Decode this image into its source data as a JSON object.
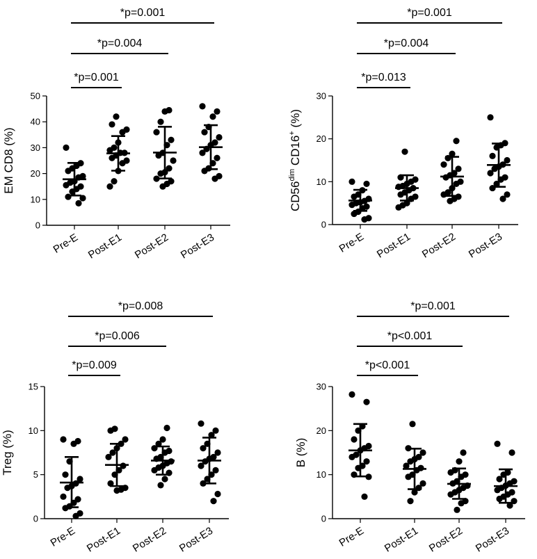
{
  "chart_data": [
    {
      "type": "scatter",
      "ylabel_parts": [
        "EM  CD8 (%)"
      ],
      "categories": [
        "Pre-E",
        "Post-E1",
        "Post-E2",
        "Post-E3"
      ],
      "ylim": [
        0,
        50
      ],
      "yticks": [
        0,
        10,
        20,
        30,
        40,
        50
      ],
      "tick_labels": [
        "0",
        "10",
        "20",
        "30",
        "40",
        "50"
      ],
      "significance": [
        {
          "label": "*p=0.001",
          "from": 0,
          "to": 1
        },
        {
          "label": "*p=0.004",
          "from": 0,
          "to": 2
        },
        {
          "label": "*p=0.001",
          "from": 0,
          "to": 3
        }
      ],
      "summary": [
        {
          "mean": 17.8,
          "low": 11.5,
          "high": 24.1
        },
        {
          "mean": 27.8,
          "low": 21.1,
          "high": 34.5
        },
        {
          "mean": 28.1,
          "low": 18.1,
          "high": 38.1
        },
        {
          "mean": 30.2,
          "low": 21.7,
          "high": 38.7
        }
      ],
      "points": [
        [
          30,
          24,
          23,
          22,
          21,
          19,
          18.5,
          17,
          16.5,
          15.5,
          15,
          14,
          13,
          11,
          10.5,
          8.5
        ],
        [
          42,
          39,
          37,
          36,
          32,
          30,
          29,
          28,
          28,
          27,
          26,
          25,
          24,
          21,
          17,
          15
        ],
        [
          44.5,
          44,
          40,
          36,
          33,
          31,
          28,
          27,
          25,
          22,
          20.5,
          20,
          18,
          17,
          16,
          15
        ],
        [
          46,
          44,
          42,
          38,
          36,
          34,
          32,
          31,
          29.5,
          28,
          26,
          24,
          22,
          21,
          19,
          18
        ]
      ]
    },
    {
      "type": "scatter",
      "ylabel_parts": [
        "CD56",
        "dim",
        " CD16",
        "+",
        " (%)"
      ],
      "categories": [
        "Pre-E",
        "Post-E1",
        "Post-E2",
        "Post-E3"
      ],
      "ylim": [
        0,
        30
      ],
      "yticks": [
        0,
        10,
        20,
        30
      ],
      "tick_labels": [
        "0",
        "10",
        "20",
        "30"
      ],
      "significance": [
        {
          "label": "*p=0.013",
          "from": 0,
          "to": 1
        },
        {
          "label": "*p=0.004",
          "from": 0,
          "to": 2
        },
        {
          "label": "*p=0.001",
          "from": 0,
          "to": 3
        }
      ],
      "summary": [
        {
          "mean": 5.6,
          "low": 3.2,
          "high": 8.1
        },
        {
          "mean": 8.5,
          "low": 5.6,
          "high": 11.5
        },
        {
          "mean": 11.2,
          "low": 6.7,
          "high": 15.8
        },
        {
          "mean": 13.9,
          "low": 8.8,
          "high": 18.9
        }
      ],
      "points": [
        [
          10,
          9.5,
          8,
          7,
          6.5,
          6,
          5.5,
          5.2,
          5,
          4.6,
          4.2,
          3.8,
          3,
          2.5,
          1.5,
          1.2
        ],
        [
          17,
          11,
          10.5,
          10,
          9.5,
          9,
          8.8,
          8.5,
          8,
          7.5,
          7,
          6.5,
          6,
          5,
          4.5,
          4
        ],
        [
          19.5,
          16.5,
          15.5,
          14,
          13,
          12,
          11.5,
          11,
          10,
          9.5,
          8.5,
          7.5,
          7,
          6.5,
          6,
          5.5
        ],
        [
          25,
          19,
          18.5,
          18,
          16,
          15,
          14,
          13.5,
          13,
          12,
          11,
          10.5,
          9.5,
          8.5,
          7,
          6
        ]
      ]
    },
    {
      "type": "scatter",
      "ylabel_parts": [
        "Treg (%)"
      ],
      "categories": [
        "Pre-E",
        "Post-E1",
        "Post-E2",
        "Post-E3"
      ],
      "ylim": [
        0,
        15
      ],
      "yticks": [
        0,
        5,
        10,
        15
      ],
      "tick_labels": [
        "0",
        "5",
        "10",
        "15"
      ],
      "significance": [
        {
          "label": "*p=0.009",
          "from": 0,
          "to": 1
        },
        {
          "label": "*p=0.006",
          "from": 0,
          "to": 2
        },
        {
          "label": "*p=0.008",
          "from": 0,
          "to": 3
        }
      ],
      "summary": [
        {
          "mean": 4.1,
          "low": 1.3,
          "high": 7.0
        },
        {
          "mean": 6.1,
          "low": 3.7,
          "high": 8.5
        },
        {
          "mean": 6.6,
          "low": 5.0,
          "high": 8.2
        },
        {
          "mean": 6.6,
          "low": 4.0,
          "high": 9.2
        }
      ],
      "points": [
        [
          9,
          8.8,
          8.5,
          6.5,
          5,
          4.5,
          4,
          3.7,
          3.5,
          2.5,
          2.2,
          1.8,
          1.4,
          1.2,
          0.6,
          0.3
        ],
        [
          10.2,
          10,
          9,
          8.5,
          8,
          7.5,
          7,
          6,
          5.5,
          5,
          4,
          3.5,
          3.3,
          3.2
        ],
        [
          10.3,
          9,
          8.5,
          8,
          7.7,
          7.5,
          7,
          6.8,
          6.5,
          6.3,
          6,
          5.8,
          5.5,
          5.2,
          4.5,
          3.8
        ],
        [
          10.8,
          10,
          9.5,
          8.5,
          8,
          7.5,
          7,
          6.8,
          6.5,
          6,
          5.5,
          5,
          4.5,
          4,
          2.8,
          2
        ]
      ]
    },
    {
      "type": "scatter",
      "ylabel_parts": [
        "B (%)"
      ],
      "categories": [
        "Pre-E",
        "Post-E1",
        "Post-E2",
        "Post-E3"
      ],
      "ylim": [
        0,
        30
      ],
      "yticks": [
        0,
        10,
        20,
        30
      ],
      "tick_labels": [
        "0",
        "10",
        "20",
        "30"
      ],
      "significance": [
        {
          "label": "*p<0.001",
          "from": 0,
          "to": 1
        },
        {
          "label": "*p<0.001",
          "from": 0,
          "to": 2
        },
        {
          "label": "*p=0.001",
          "from": 0,
          "to": 3
        }
      ],
      "summary": [
        {
          "mean": 15.5,
          "low": 9.6,
          "high": 21.5
        },
        {
          "mean": 11.3,
          "low": 6.7,
          "high": 15.9
        },
        {
          "mean": 7.9,
          "low": 4.5,
          "high": 11.4
        },
        {
          "mean": 7.4,
          "low": 3.6,
          "high": 11.2
        }
      ],
      "points": [
        [
          28.2,
          26.5,
          21,
          20,
          18,
          16.5,
          16,
          15.5,
          14.5,
          14,
          13,
          12,
          11.5,
          10,
          9.5,
          5
        ],
        [
          21.5,
          16,
          15,
          14,
          13.5,
          13,
          12,
          11.5,
          11,
          10,
          9.5,
          8,
          7,
          6,
          4
        ],
        [
          15,
          13,
          11,
          10.5,
          10,
          9.5,
          8.5,
          8,
          7.5,
          7,
          6.5,
          6,
          5.5,
          4,
          3.5,
          2
        ],
        [
          17,
          15,
          10.5,
          10,
          9,
          8.5,
          8,
          7.5,
          7,
          6.5,
          6,
          5.5,
          5,
          4.5,
          4,
          3
        ]
      ]
    }
  ]
}
